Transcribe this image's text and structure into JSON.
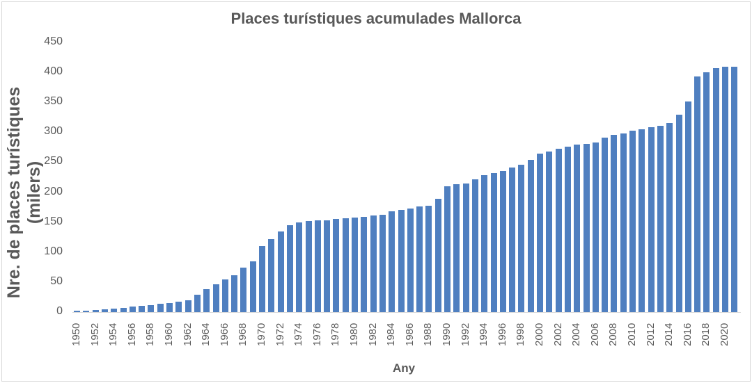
{
  "chart_data": {
    "type": "bar",
    "title": "Places turístiques acumulades Mallorca",
    "xlabel": "Any",
    "ylabel": "Nre. de places turístiques (milers)",
    "ylim": [
      0,
      450
    ],
    "yticks": [
      0,
      50,
      100,
      150,
      200,
      250,
      300,
      350,
      400,
      450
    ],
    "grid": false,
    "legend": null,
    "color": "#4f7fc0",
    "categories": [
      1950,
      1951,
      1952,
      1953,
      1954,
      1955,
      1956,
      1957,
      1958,
      1959,
      1960,
      1961,
      1962,
      1963,
      1964,
      1965,
      1966,
      1967,
      1968,
      1969,
      1970,
      1971,
      1972,
      1973,
      1974,
      1975,
      1976,
      1977,
      1978,
      1979,
      1980,
      1981,
      1982,
      1983,
      1984,
      1985,
      1986,
      1987,
      1988,
      1989,
      1990,
      1991,
      1992,
      1993,
      1994,
      1995,
      1996,
      1997,
      1998,
      1999,
      2000,
      2001,
      2002,
      2003,
      2004,
      2005,
      2006,
      2007,
      2008,
      2009,
      2010,
      2011,
      2012,
      2013,
      2014,
      2015,
      2016,
      2017,
      2018,
      2019,
      2020,
      2021
    ],
    "xtick_labels": [
      "1950",
      "1952",
      "1954",
      "1956",
      "1958",
      "1960",
      "1962",
      "1964",
      "1966",
      "1968",
      "1970",
      "1972",
      "1974",
      "1976",
      "1978",
      "1980",
      "1982",
      "1984",
      "1986",
      "1988",
      "1990",
      "1992",
      "1994",
      "1996",
      "1998",
      "2000",
      "2002",
      "2004",
      "2006",
      "2008",
      "2010",
      "2012",
      "2014",
      "2016",
      "2018",
      "2020"
    ],
    "values": [
      2,
      2,
      3,
      5,
      6,
      7,
      9,
      10,
      12,
      14,
      15,
      17,
      20,
      29,
      38,
      46,
      55,
      62,
      74,
      85,
      110,
      122,
      134,
      145,
      150,
      152,
      153,
      153,
      155,
      157,
      158,
      159,
      161,
      162,
      168,
      171,
      173,
      176,
      178,
      189,
      210,
      213,
      215,
      221,
      228,
      232,
      235,
      241,
      246,
      254,
      264,
      268,
      272,
      276,
      279,
      281,
      283,
      291,
      296,
      298,
      303,
      305,
      308,
      311,
      316,
      329,
      352,
      393,
      400,
      407,
      409,
      410
    ]
  }
}
